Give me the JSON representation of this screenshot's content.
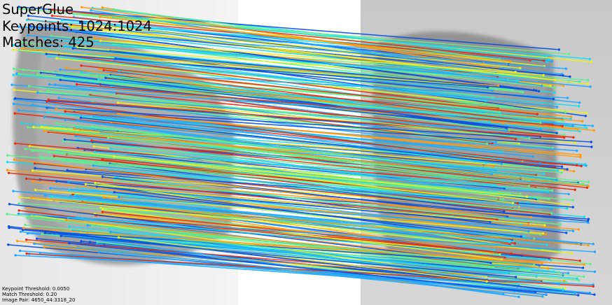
{
  "title": "SuperGlue",
  "keypoints_text": "Keypoints: 1024:1024",
  "matches_text": "Matches: 425",
  "keypoint_threshold_text": "Keypoint Threshold: 0.0050",
  "match_threshold_text": "Match Threshold: 0.20",
  "image_pair_text": "Image Pair: 4650_44:3318_20",
  "match_count": 425,
  "colors": {
    "blue": "#0a4fe0",
    "lightblue": "#1ea8ff",
    "cyan": "#18dcf0",
    "green": "#60ee8c",
    "yellow": "#e8f020",
    "orange": "#ff9a10",
    "red": "#e62a10"
  }
}
